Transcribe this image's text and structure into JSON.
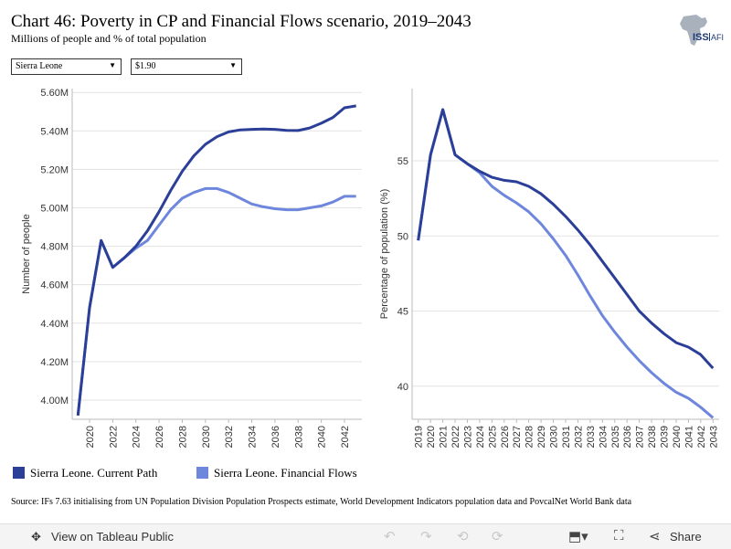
{
  "title": "Chart 46: Poverty in CP and Financial Flows scenario, 2019–2043",
  "subtitle": "Millions of people and % of total population",
  "logo_text": "ISS | AFI",
  "filters": {
    "country": "Sierra Leone",
    "poverty_line": "$1.90"
  },
  "colors": {
    "current_path": "#2b3f99",
    "financial_flows": "#6e86dc"
  },
  "legend": {
    "current_path": "Sierra Leone. Current Path",
    "financial_flows": "Sierra Leone. Financial Flows"
  },
  "source": "Source: IFs 7.63 initialising from UN Population Division Population Prospects estimate, World Development Indicators population data and PovcalNet World Bank data",
  "footer": {
    "view_label": "View on Tableau Public",
    "share_label": "Share"
  },
  "chart_data": [
    {
      "type": "line",
      "ylabel": "Number of people",
      "xlabel": "",
      "x": [
        2019,
        2020,
        2021,
        2022,
        2023,
        2024,
        2025,
        2026,
        2027,
        2028,
        2029,
        2030,
        2031,
        2032,
        2033,
        2034,
        2035,
        2036,
        2037,
        2038,
        2039,
        2040,
        2041,
        2042,
        2043
      ],
      "x_ticks": [
        "2020",
        "2022",
        "2024",
        "2026",
        "2028",
        "2030",
        "2032",
        "2034",
        "2036",
        "2038",
        "2040",
        "2042"
      ],
      "x_range": [
        2018.5,
        2043.5
      ],
      "ylim": [
        3.9,
        5.62
      ],
      "y_ticks": [
        4.0,
        4.2,
        4.4,
        4.6,
        4.8,
        5.0,
        5.2,
        5.4,
        5.6
      ],
      "y_tick_labels": [
        "4.00M",
        "4.20M",
        "4.40M",
        "4.60M",
        "4.80M",
        "5.00M",
        "5.20M",
        "5.40M",
        "5.60M"
      ],
      "series": [
        {
          "name": "Sierra Leone. Current Path",
          "values": [
            3.92,
            4.48,
            4.83,
            4.69,
            4.74,
            4.8,
            4.88,
            4.98,
            5.09,
            5.19,
            5.27,
            5.33,
            5.37,
            5.395,
            5.405,
            5.408,
            5.41,
            5.408,
            5.403,
            5.402,
            5.415,
            5.44,
            5.47,
            5.52,
            5.53
          ]
        },
        {
          "name": "Sierra Leone. Financial Flows",
          "values": [
            3.92,
            4.48,
            4.83,
            4.69,
            4.74,
            4.79,
            4.83,
            4.91,
            4.99,
            5.05,
            5.08,
            5.1,
            5.1,
            5.08,
            5.05,
            5.02,
            5.005,
            4.995,
            4.99,
            4.99,
            5.0,
            5.01,
            5.03,
            5.06,
            5.06
          ]
        }
      ]
    },
    {
      "type": "line",
      "ylabel": "Percentage of population (%)",
      "xlabel": "",
      "x": [
        2019,
        2020,
        2021,
        2022,
        2023,
        2024,
        2025,
        2026,
        2027,
        2028,
        2029,
        2030,
        2031,
        2032,
        2033,
        2034,
        2035,
        2036,
        2037,
        2038,
        2039,
        2040,
        2041,
        2042,
        2043
      ],
      "x_ticks": [
        "2019",
        "2020",
        "2021",
        "2022",
        "2023",
        "2024",
        "2025",
        "2026",
        "2027",
        "2028",
        "2029",
        "2030",
        "2031",
        "2032",
        "2033",
        "2034",
        "2035",
        "2036",
        "2037",
        "2038",
        "2039",
        "2040",
        "2041",
        "2042",
        "2043"
      ],
      "x_range": [
        2018.5,
        2043.5
      ],
      "ylim": [
        37.8,
        59.8
      ],
      "y_ticks": [
        40,
        45,
        50,
        55
      ],
      "y_tick_labels": [
        "40",
        "45",
        "50",
        "55"
      ],
      "series": [
        {
          "name": "Sierra Leone. Current Path",
          "values": [
            49.7,
            55.4,
            58.4,
            55.4,
            54.8,
            54.3,
            53.9,
            53.7,
            53.6,
            53.3,
            52.8,
            52.1,
            51.3,
            50.4,
            49.4,
            48.3,
            47.2,
            46.1,
            45.0,
            44.2,
            43.5,
            42.9,
            42.6,
            42.1,
            41.2
          ]
        },
        {
          "name": "Sierra Leone. Financial Flows",
          "values": [
            49.7,
            55.4,
            58.4,
            55.4,
            54.8,
            54.2,
            53.3,
            52.7,
            52.2,
            51.6,
            50.8,
            49.8,
            48.7,
            47.4,
            46.0,
            44.7,
            43.6,
            42.6,
            41.7,
            40.9,
            40.2,
            39.6,
            39.2,
            38.6,
            37.9
          ]
        }
      ]
    }
  ]
}
